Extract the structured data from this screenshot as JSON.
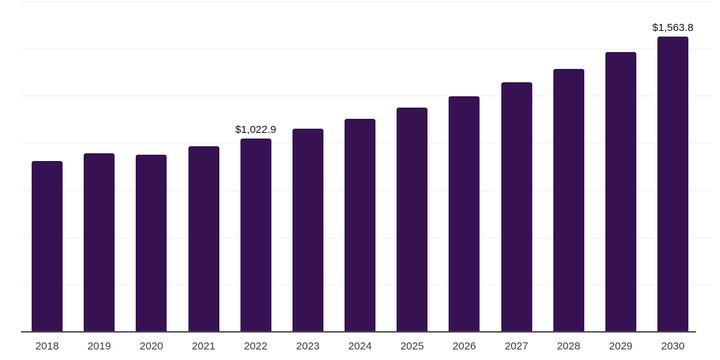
{
  "chart_data": {
    "type": "bar",
    "title": "",
    "xlabel": "",
    "ylabel": "",
    "categories": [
      "2018",
      "2019",
      "2020",
      "2021",
      "2022",
      "2023",
      "2024",
      "2025",
      "2026",
      "2027",
      "2028",
      "2029",
      "2030"
    ],
    "values": [
      906,
      944,
      938,
      984,
      1022.9,
      1075,
      1128,
      1188,
      1248,
      1320,
      1391,
      1481,
      1563.8
    ],
    "value_prefix": "$",
    "data_labels": [
      {
        "category": "2022",
        "text": "$1,022.9"
      },
      {
        "category": "2030",
        "text": "$1,563.8"
      }
    ],
    "ylim": [
      0,
      1750
    ],
    "gridline_values": [
      250,
      500,
      750,
      1000,
      1250,
      1500,
      1750
    ],
    "grid": "horizontal-only",
    "y_axis_labels_visible": false,
    "legend_position": "none",
    "bar_color": "#371253",
    "gridline_color": "#f0f0f2",
    "axis_line_color": "#4d4d4d",
    "tick_label_color": "#3a3a3a",
    "data_label_color": "#111111",
    "background_color": "#ffffff"
  }
}
